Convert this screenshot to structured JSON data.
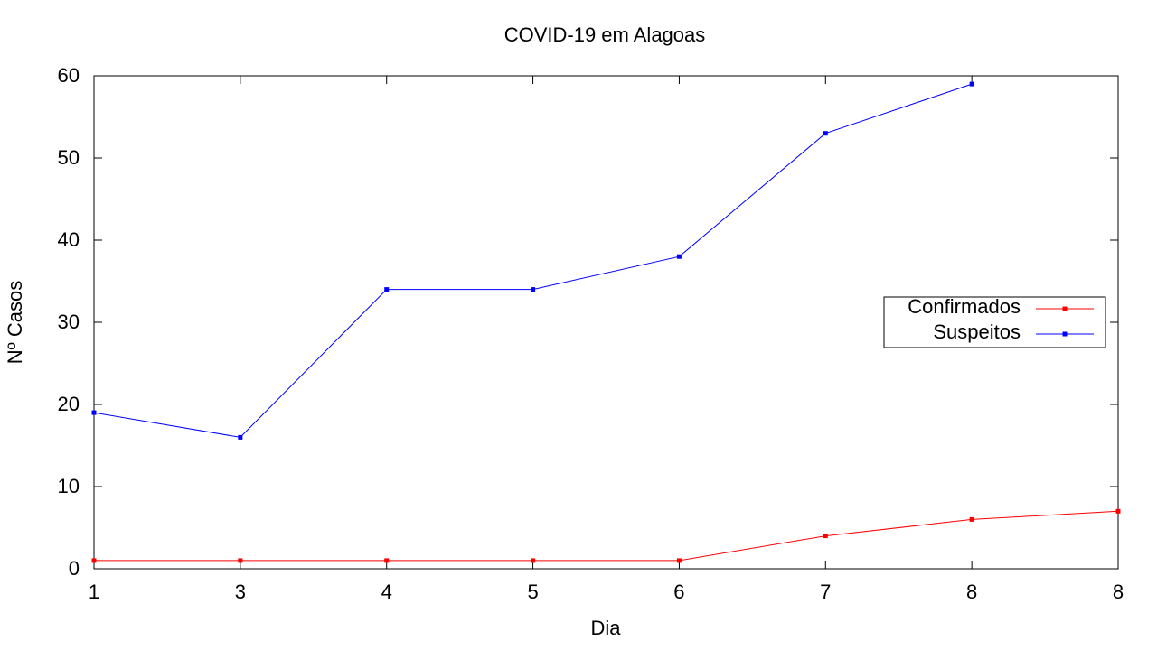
{
  "chart_data": {
    "type": "line",
    "title": "COVID-19 em Alagoas",
    "xlabel": "Dia",
    "ylabel": "Nº Casos",
    "categories": [
      "1",
      "3",
      "4",
      "5",
      "6",
      "7",
      "8",
      "8"
    ],
    "ylim": [
      0,
      60
    ],
    "yticks": [
      0,
      10,
      20,
      30,
      40,
      50,
      60
    ],
    "grid": false,
    "legend_position": "right",
    "series": [
      {
        "name": "Confirmados",
        "color": "#ff0000",
        "marker": "square",
        "values": [
          1,
          1,
          1,
          1,
          1,
          4,
          6,
          7
        ]
      },
      {
        "name": "Suspeitos",
        "color": "#0000ff",
        "marker": "square",
        "values": [
          19,
          16,
          34,
          34,
          38,
          53,
          59,
          null
        ]
      }
    ]
  }
}
